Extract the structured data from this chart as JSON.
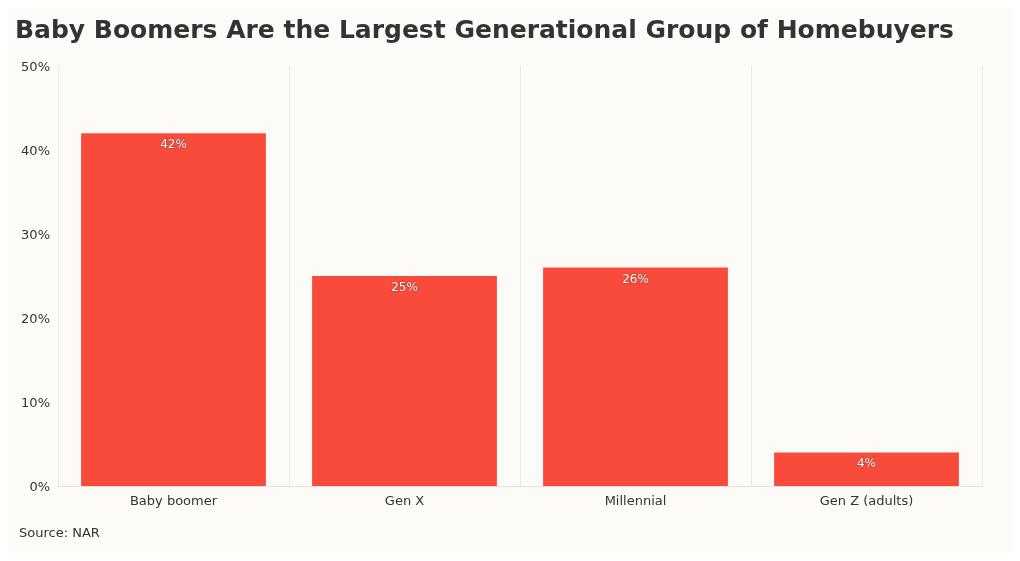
{
  "chart_data": {
    "type": "bar",
    "title": "Baby Boomers Are the Largest Generational Group of Homebuyers",
    "categories": [
      "Baby boomer",
      "Gen X",
      "Millennial",
      "Gen Z (adults)"
    ],
    "values": [
      42,
      25,
      26,
      4
    ],
    "color": "#f94b3c",
    "value_labels": [
      "42%",
      "25%",
      "26%",
      "4%"
    ],
    "ylim": [
      0,
      50
    ],
    "yticks": [
      {
        "value": 0,
        "label": "0%"
      },
      {
        "value": 10,
        "label": "10%"
      },
      {
        "value": 20,
        "label": "20%"
      },
      {
        "value": 30,
        "label": "30%"
      },
      {
        "value": 40,
        "label": "40%"
      },
      {
        "value": 50,
        "label": "50%"
      }
    ],
    "grid": "x",
    "annotations": [
      "Source: NAR"
    ]
  }
}
